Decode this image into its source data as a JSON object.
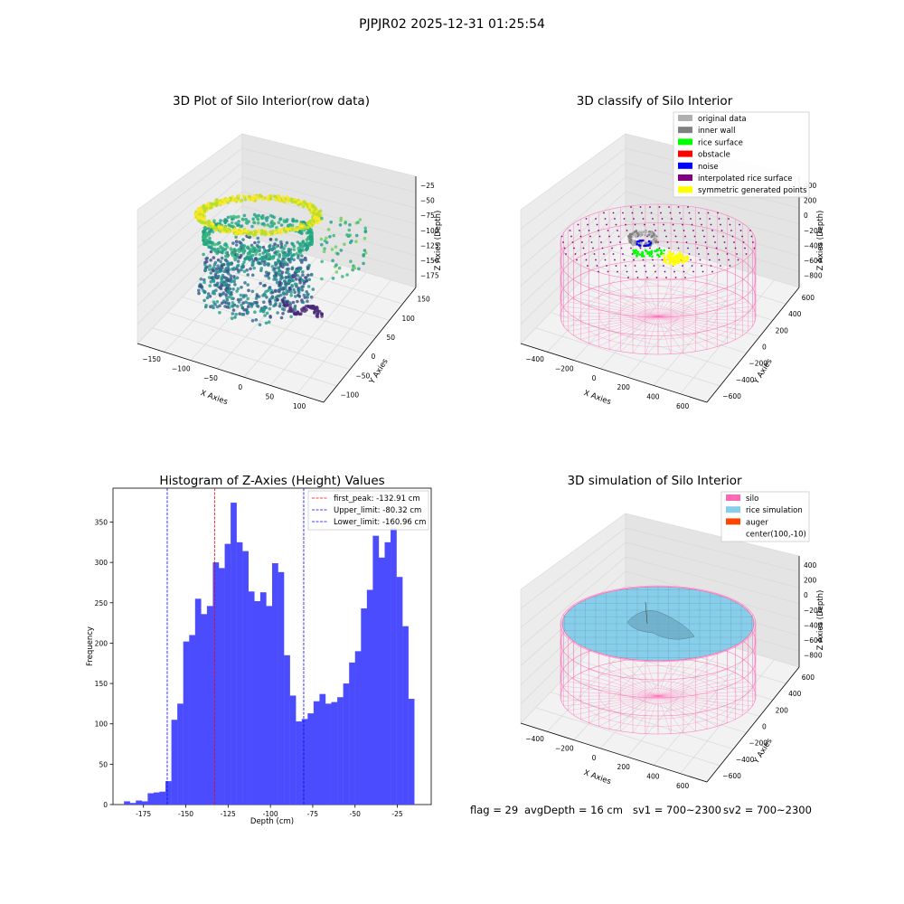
{
  "suptitle": "PJPJR02 2025-12-31 01:25:54",
  "footer": {
    "flag": "flag = 29",
    "avg_depth": "avgDepth = 16 cm",
    "sv1": "sv1 = 700~2300",
    "sv2": "sv2 = 700~2300"
  },
  "colors": {
    "histogram": "#4c4cff",
    "first_peak": "#ff0000",
    "limits": "#0000ff",
    "silo": "#ff69b4",
    "rice_simulation": "#87ceeb",
    "auger": "#ff4500",
    "original_data": "#b0b0b0",
    "inner_wall": "#808080",
    "rice_surface": "#00ff00",
    "obstacle": "#ff0000",
    "noise": "#0000ff",
    "interpolated_rice_surface": "#800080",
    "symmetric_generated_points": "#ffff00"
  },
  "chart_data": [
    {
      "type": "scatter",
      "title": "3D Plot of Silo Interior(row data)",
      "xlabel": "X Axies",
      "ylabel": "Y Axies",
      "zlabel": "Z Axies (Depth)",
      "x_ticks": [
        "−150",
        "−100",
        "−50",
        "0",
        "50",
        "100"
      ],
      "y_ticks": [
        "−100",
        "−50",
        "0",
        "50",
        "100",
        "150"
      ],
      "z_ticks": [
        "−25",
        "−50",
        "−75",
        "−100",
        "−125",
        "−150",
        "−175"
      ],
      "colormap": "viridis"
    },
    {
      "type": "scatter",
      "title": "3D classify of Silo Interior",
      "xlabel": "X Axies",
      "ylabel": "Y Axies",
      "zlabel": "Z Axies (Depth)",
      "x_ticks": [
        "−400",
        "−200",
        "0",
        "200",
        "400",
        "600"
      ],
      "y_ticks": [
        "−600",
        "−400",
        "−200",
        "0",
        "200",
        "400",
        "600"
      ],
      "z_ticks": [
        "400",
        "200",
        "0",
        "−200",
        "−400",
        "−600",
        "−800"
      ],
      "legend": [
        {
          "label": "original data",
          "color": "#b0b0b0"
        },
        {
          "label": "inner wall",
          "color": "#808080"
        },
        {
          "label": "rice surface",
          "color": "#00ff00"
        },
        {
          "label": "obstacle",
          "color": "#ff0000"
        },
        {
          "label": "noise",
          "color": "#0000ff"
        },
        {
          "label": "interpolated rice surface",
          "color": "#800080"
        },
        {
          "label": "symmetric generated points",
          "color": "#ffff00"
        }
      ],
      "legend_position": "top-right"
    },
    {
      "type": "bar",
      "title": "Histogram of Z-Axies (Height) Values",
      "xlabel": "Depth (cm)",
      "ylabel": "Frequency",
      "xlim": [
        -193,
        -5
      ],
      "ylim": [
        0,
        392
      ],
      "x_ticks": [
        -175,
        -150,
        -125,
        -100,
        -75,
        -50,
        -25
      ],
      "y_ticks": [
        0,
        50,
        100,
        150,
        200,
        250,
        300,
        350
      ],
      "bin_start": -186.5,
      "bin_width": 3.5,
      "values": [
        4,
        2,
        5,
        4,
        14,
        15,
        16,
        29,
        105,
        125,
        202,
        210,
        255,
        236,
        246,
        300,
        293,
        323,
        374,
        325,
        314,
        264,
        252,
        263,
        246,
        299,
        288,
        185,
        135,
        103,
        106,
        113,
        128,
        137,
        125,
        127,
        133,
        150,
        176,
        190,
        243,
        266,
        333,
        306,
        325,
        343,
        282,
        221,
        131
      ],
      "vlines": [
        {
          "label": "first_peak: -132.91 cm",
          "x": -132.91,
          "color": "#ff0000"
        },
        {
          "label": "Upper_limit: -80.32 cm",
          "x": -80.32,
          "color": "#0000ff"
        },
        {
          "label": "Lower_limit: -160.96 cm",
          "x": -160.96,
          "color": "#0000ff"
        }
      ],
      "legend_position": "top-right"
    },
    {
      "type": "scatter",
      "title": "3D simulation of Silo Interior",
      "xlabel": "X Axies",
      "ylabel": "Y Axies",
      "zlabel": "Z Axies (Depth)",
      "x_ticks": [
        "−400",
        "−200",
        "0",
        "200",
        "400",
        "600"
      ],
      "y_ticks": [
        "−600",
        "−400",
        "−200",
        "0",
        "200",
        "400",
        "600"
      ],
      "z_ticks": [
        "400",
        "200",
        "0",
        "−200",
        "−400",
        "−600",
        "−800"
      ],
      "legend": [
        {
          "label": "silo",
          "color": "#ff69b4"
        },
        {
          "label": "rice simulation",
          "color": "#87ceeb"
        },
        {
          "label": "auger",
          "color": "#ff4500"
        },
        {
          "label": "center(100,-10)",
          "color": ""
        }
      ],
      "legend_position": "top-right"
    }
  ]
}
